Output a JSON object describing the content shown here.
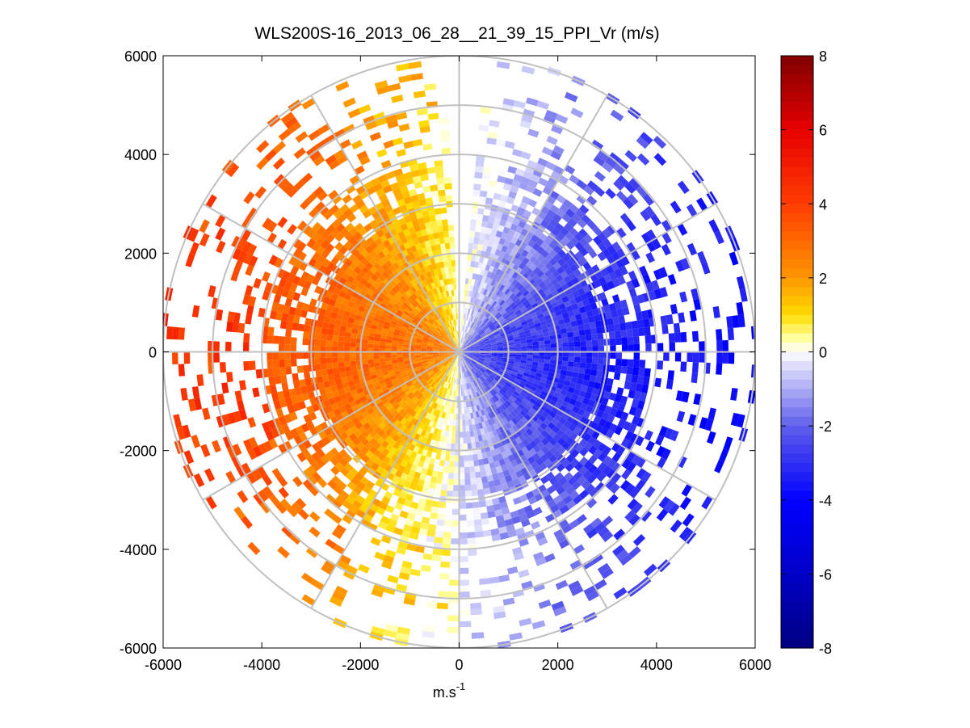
{
  "chart_data": {
    "type": "heatmap",
    "subtype": "polar-ppi-scan",
    "title": "WLS200S-16_2013_06_28__21_39_15_PPI_Vr (m/s)",
    "xlabel_base": "m.s",
    "xlabel_exponent": "-1",
    "ylabel": "",
    "xlim": [
      -6000,
      6000
    ],
    "ylim": [
      -6000,
      6000
    ],
    "xticks": [
      -6000,
      -4000,
      -2000,
      0,
      2000,
      4000,
      6000
    ],
    "xtick_labels": [
      "-6000",
      "-4000",
      "-2000",
      "0",
      "2000",
      "4000",
      "6000"
    ],
    "yticks": [
      6000,
      4000,
      2000,
      0,
      -2000,
      -4000,
      -6000
    ],
    "ytick_labels": [
      "6000",
      "4000",
      "2000",
      "0",
      "-2000",
      "-4000",
      "-6000"
    ],
    "polar_grid": {
      "range_rings_m": [
        1000,
        2000,
        3000,
        4000,
        5000,
        6000
      ],
      "spoke_angles_deg": [
        0,
        30,
        60,
        90,
        120,
        150,
        180,
        210,
        240,
        270,
        300,
        330
      ]
    },
    "colorbar": {
      "range": [
        -8,
        8
      ],
      "ticks": [
        8,
        6,
        4,
        2,
        0,
        -2,
        -4,
        -6,
        -8
      ],
      "tick_labels": [
        "8",
        "6",
        "4",
        "2",
        "0",
        "-2",
        "-4",
        "-6",
        "-8"
      ]
    },
    "field_description": {
      "west_half_velocity_ms": [
        0.5,
        3.5
      ],
      "east_half_velocity_ms": [
        -4.5,
        -0.5
      ],
      "max_range_m": 6000
    },
    "colors": {
      "grid": "#c0c0c0",
      "axes": "#000000",
      "background": "#ffffff"
    }
  }
}
